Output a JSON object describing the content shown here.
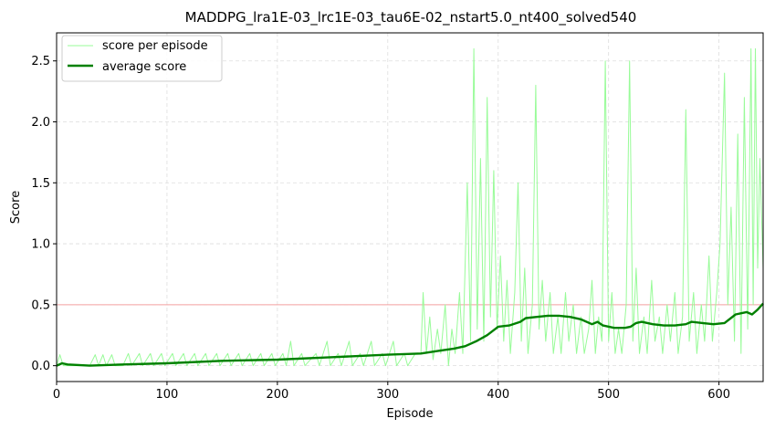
{
  "chart_data": {
    "type": "line",
    "title": "MADDPG_lra1E-03_lrc1E-03_tau6E-02_nstart5.0_nt400_solved540",
    "xlabel": "Episode",
    "ylabel": "Score",
    "xlim": [
      0,
      640
    ],
    "ylim": [
      -0.13,
      2.73
    ],
    "x_ticks": [
      0,
      100,
      200,
      300,
      400,
      500,
      600
    ],
    "y_ticks": [
      0.0,
      0.5,
      1.0,
      1.5,
      2.0,
      2.5
    ],
    "x_tick_labels": [
      "0",
      "100",
      "200",
      "300",
      "400",
      "500",
      "600"
    ],
    "y_tick_labels": [
      "0.0",
      "0.5",
      "1.0",
      "1.5",
      "2.0",
      "2.5"
    ],
    "grid": true,
    "legend_position": "upper-left",
    "threshold": {
      "y": 0.5,
      "color": "#f4a0a0"
    },
    "series": [
      {
        "name": "score per episode",
        "color": "#98fb98",
        "style": "thin",
        "points": [
          [
            0,
            0.0
          ],
          [
            3,
            0.09
          ],
          [
            6,
            0.0
          ],
          [
            30,
            0.0
          ],
          [
            35,
            0.09
          ],
          [
            38,
            0.0
          ],
          [
            42,
            0.09
          ],
          [
            45,
            0.0
          ],
          [
            50,
            0.09
          ],
          [
            53,
            0.0
          ],
          [
            60,
            0.0
          ],
          [
            65,
            0.1
          ],
          [
            68,
            0.0
          ],
          [
            75,
            0.1
          ],
          [
            78,
            0.0
          ],
          [
            85,
            0.1
          ],
          [
            88,
            0.0
          ],
          [
            95,
            0.1
          ],
          [
            98,
            0.0
          ],
          [
            105,
            0.1
          ],
          [
            108,
            0.0
          ],
          [
            115,
            0.1
          ],
          [
            118,
            0.0
          ],
          [
            125,
            0.1
          ],
          [
            128,
            0.0
          ],
          [
            135,
            0.1
          ],
          [
            138,
            0.0
          ],
          [
            145,
            0.1
          ],
          [
            148,
            0.0
          ],
          [
            155,
            0.1
          ],
          [
            158,
            0.0
          ],
          [
            165,
            0.1
          ],
          [
            168,
            0.0
          ],
          [
            175,
            0.1
          ],
          [
            178,
            0.0
          ],
          [
            185,
            0.1
          ],
          [
            188,
            0.0
          ],
          [
            195,
            0.1
          ],
          [
            198,
            0.0
          ],
          [
            205,
            0.1
          ],
          [
            208,
            0.0
          ],
          [
            212,
            0.2
          ],
          [
            215,
            0.0
          ],
          [
            222,
            0.1
          ],
          [
            225,
            0.0
          ],
          [
            235,
            0.1
          ],
          [
            238,
            0.0
          ],
          [
            245,
            0.2
          ],
          [
            248,
            0.0
          ],
          [
            255,
            0.1
          ],
          [
            258,
            0.0
          ],
          [
            265,
            0.2
          ],
          [
            268,
            0.0
          ],
          [
            275,
            0.1
          ],
          [
            278,
            0.0
          ],
          [
            285,
            0.2
          ],
          [
            288,
            0.0
          ],
          [
            295,
            0.1
          ],
          [
            298,
            0.0
          ],
          [
            305,
            0.2
          ],
          [
            308,
            0.0
          ],
          [
            315,
            0.1
          ],
          [
            318,
            0.0
          ],
          [
            325,
            0.1
          ],
          [
            330,
            0.1
          ],
          [
            332,
            0.6
          ],
          [
            335,
            0.1
          ],
          [
            338,
            0.4
          ],
          [
            341,
            0.05
          ],
          [
            345,
            0.3
          ],
          [
            348,
            0.1
          ],
          [
            352,
            0.5
          ],
          [
            355,
            0.0
          ],
          [
            358,
            0.3
          ],
          [
            361,
            0.1
          ],
          [
            365,
            0.6
          ],
          [
            368,
            0.1
          ],
          [
            372,
            1.5
          ],
          [
            375,
            0.2
          ],
          [
            378,
            2.6
          ],
          [
            381,
            0.3
          ],
          [
            384,
            1.7
          ],
          [
            387,
            0.2
          ],
          [
            390,
            2.2
          ],
          [
            393,
            0.4
          ],
          [
            396,
            1.6
          ],
          [
            399,
            0.3
          ],
          [
            402,
            0.9
          ],
          [
            405,
            0.2
          ],
          [
            408,
            0.7
          ],
          [
            411,
            0.1
          ],
          [
            415,
            0.6
          ],
          [
            418,
            1.5
          ],
          [
            421,
            0.2
          ],
          [
            424,
            0.8
          ],
          [
            427,
            0.1
          ],
          [
            431,
            0.5
          ],
          [
            434,
            2.3
          ],
          [
            437,
            0.3
          ],
          [
            440,
            0.7
          ],
          [
            443,
            0.2
          ],
          [
            447,
            0.6
          ],
          [
            450,
            0.1
          ],
          [
            454,
            0.4
          ],
          [
            457,
            0.1
          ],
          [
            461,
            0.6
          ],
          [
            464,
            0.2
          ],
          [
            468,
            0.5
          ],
          [
            471,
            0.1
          ],
          [
            475,
            0.4
          ],
          [
            478,
            0.1
          ],
          [
            482,
            0.3
          ],
          [
            485,
            0.7
          ],
          [
            488,
            0.1
          ],
          [
            491,
            0.4
          ],
          [
            494,
            0.2
          ],
          [
            497,
            2.5
          ],
          [
            500,
            0.2
          ],
          [
            503,
            0.6
          ],
          [
            506,
            0.1
          ],
          [
            509,
            0.3
          ],
          [
            512,
            0.1
          ],
          [
            516,
            0.5
          ],
          [
            519,
            2.5
          ],
          [
            522,
            0.2
          ],
          [
            525,
            0.8
          ],
          [
            528,
            0.1
          ],
          [
            532,
            0.4
          ],
          [
            535,
            0.1
          ],
          [
            539,
            0.7
          ],
          [
            542,
            0.2
          ],
          [
            546,
            0.4
          ],
          [
            549,
            0.1
          ],
          [
            553,
            0.5
          ],
          [
            556,
            0.2
          ],
          [
            560,
            0.6
          ],
          [
            563,
            0.1
          ],
          [
            567,
            0.4
          ],
          [
            570,
            2.1
          ],
          [
            573,
            0.2
          ],
          [
            577,
            0.6
          ],
          [
            580,
            0.1
          ],
          [
            584,
            0.5
          ],
          [
            587,
            0.2
          ],
          [
            591,
            0.9
          ],
          [
            594,
            0.2
          ],
          [
            598,
            0.6
          ],
          [
            601,
            1.0
          ],
          [
            605,
            2.4
          ],
          [
            608,
            0.5
          ],
          [
            611,
            1.3
          ],
          [
            614,
            0.2
          ],
          [
            617,
            1.9
          ],
          [
            620,
            0.1
          ],
          [
            623,
            2.2
          ],
          [
            626,
            0.3
          ],
          [
            629,
            2.6
          ],
          [
            631,
            0.5
          ],
          [
            633,
            2.6
          ],
          [
            635,
            0.8
          ],
          [
            637,
            1.7
          ],
          [
            640,
            0.8
          ]
        ]
      },
      {
        "name": "average score",
        "color": "#008000",
        "style": "thick",
        "points": [
          [
            0,
            0.0
          ],
          [
            5,
            0.02
          ],
          [
            10,
            0.01
          ],
          [
            30,
            0.0
          ],
          [
            60,
            0.01
          ],
          [
            100,
            0.02
          ],
          [
            150,
            0.04
          ],
          [
            200,
            0.05
          ],
          [
            250,
            0.07
          ],
          [
            300,
            0.09
          ],
          [
            330,
            0.1
          ],
          [
            345,
            0.12
          ],
          [
            360,
            0.14
          ],
          [
            370,
            0.16
          ],
          [
            380,
            0.2
          ],
          [
            390,
            0.25
          ],
          [
            400,
            0.32
          ],
          [
            410,
            0.33
          ],
          [
            420,
            0.36
          ],
          [
            425,
            0.39
          ],
          [
            435,
            0.4
          ],
          [
            445,
            0.41
          ],
          [
            455,
            0.41
          ],
          [
            465,
            0.4
          ],
          [
            475,
            0.38
          ],
          [
            485,
            0.34
          ],
          [
            490,
            0.36
          ],
          [
            495,
            0.33
          ],
          [
            505,
            0.31
          ],
          [
            515,
            0.31
          ],
          [
            520,
            0.32
          ],
          [
            525,
            0.35
          ],
          [
            530,
            0.36
          ],
          [
            540,
            0.34
          ],
          [
            550,
            0.33
          ],
          [
            560,
            0.33
          ],
          [
            570,
            0.34
          ],
          [
            575,
            0.36
          ],
          [
            585,
            0.35
          ],
          [
            595,
            0.34
          ],
          [
            605,
            0.35
          ],
          [
            615,
            0.42
          ],
          [
            625,
            0.44
          ],
          [
            630,
            0.42
          ],
          [
            635,
            0.46
          ],
          [
            640,
            0.51
          ]
        ]
      }
    ]
  }
}
